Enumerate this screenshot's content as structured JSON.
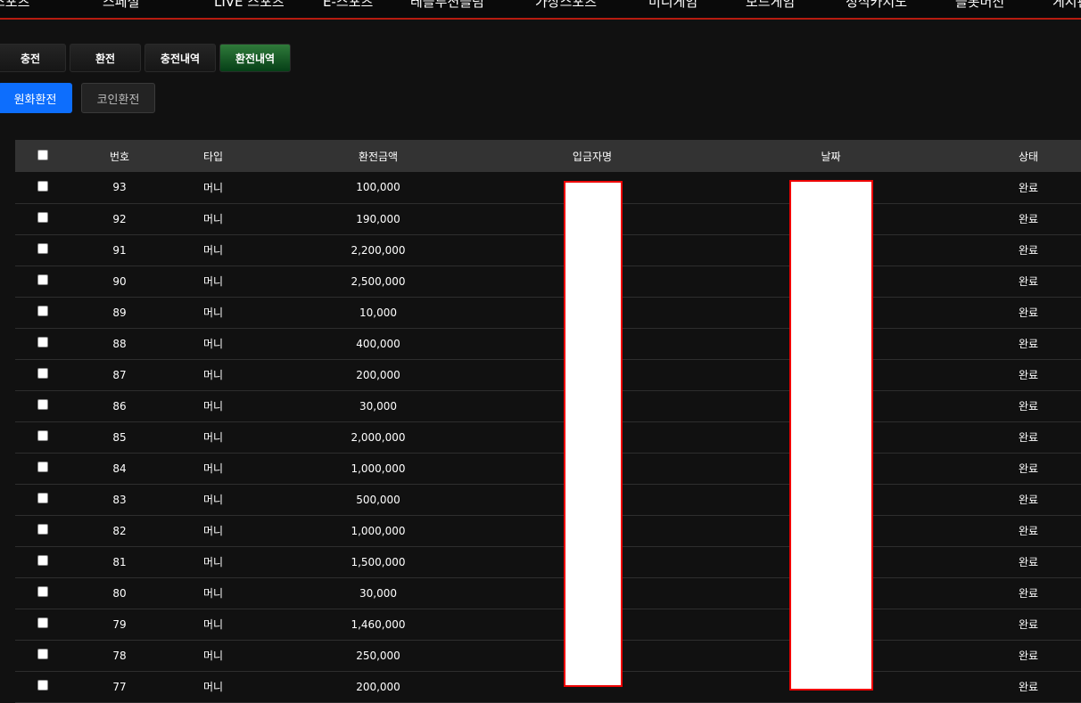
{
  "nav": [
    "스포츠",
    "스페셜",
    "LIVE 스포츠",
    "E-스포츠",
    "테블루션블럼",
    "가상스포츠",
    "미니게임",
    "보드게임",
    "정식카지노",
    "슬롯머신",
    "게시판"
  ],
  "tabs": [
    "충전",
    "환전",
    "충전내역",
    "환전내역"
  ],
  "active_tab": "환전내역",
  "subtabs": [
    "원화환전",
    "코인환전"
  ],
  "table": {
    "headers": [
      "번호",
      "타입",
      "환전금액",
      "입금자명",
      "날짜",
      "상태"
    ],
    "rows": [
      [
        "93",
        "머니",
        "100,000",
        "완료"
      ],
      [
        "92",
        "머니",
        "190,000",
        "완료"
      ],
      [
        "91",
        "머니",
        "2,200,000",
        "완료"
      ],
      [
        "90",
        "머니",
        "2,500,000",
        "완료"
      ],
      [
        "89",
        "머니",
        "10,000",
        "완료"
      ],
      [
        "88",
        "머니",
        "400,000",
        "완료"
      ],
      [
        "87",
        "머니",
        "200,000",
        "완료"
      ],
      [
        "86",
        "머니",
        "30,000",
        "완료"
      ],
      [
        "85",
        "머니",
        "2,000,000",
        "완료"
      ],
      [
        "84",
        "머니",
        "1,000,000",
        "완료"
      ],
      [
        "83",
        "머니",
        "500,000",
        "완료"
      ],
      [
        "82",
        "머니",
        "1,000,000",
        "완료"
      ],
      [
        "81",
        "머니",
        "1,500,000",
        "완료"
      ],
      [
        "80",
        "머니",
        "30,000",
        "완료"
      ],
      [
        "79",
        "머니",
        "1,460,000",
        "완료"
      ],
      [
        "78",
        "머니",
        "250,000",
        "완료"
      ],
      [
        "77",
        "머니",
        "200,000",
        "완료"
      ]
    ]
  }
}
